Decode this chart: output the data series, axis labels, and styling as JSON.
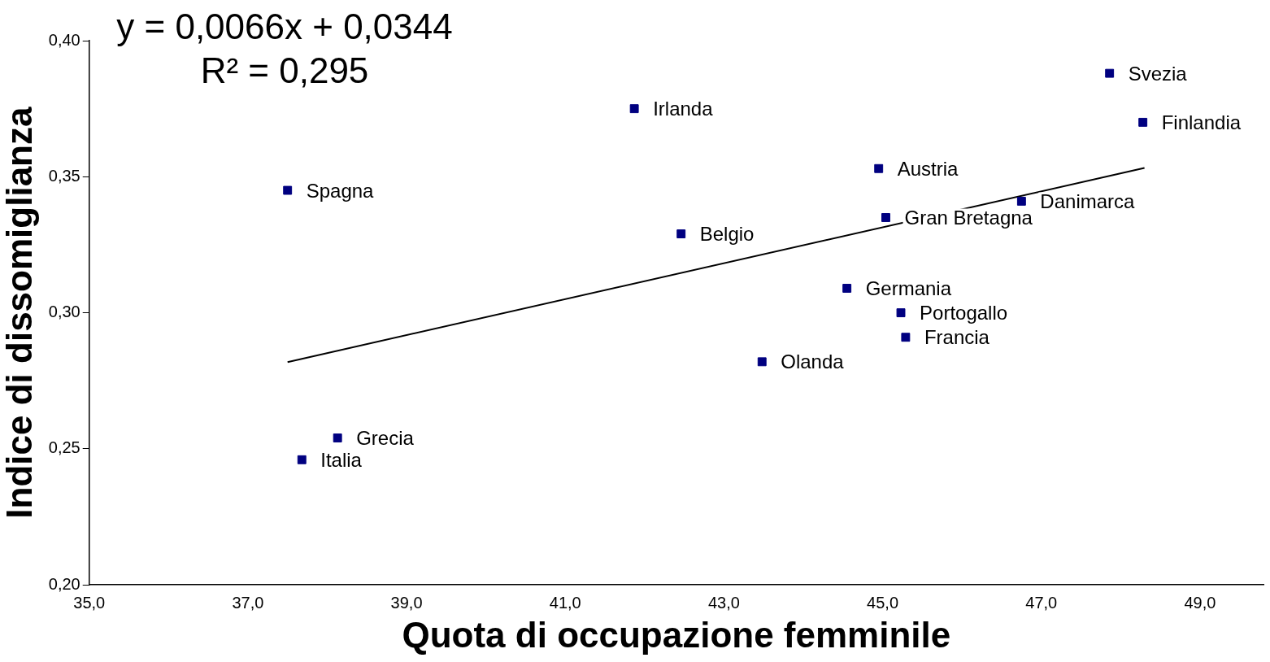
{
  "chart_data": {
    "type": "scatter",
    "xlabel": "Quota di occupazione femminile",
    "ylabel": "Indice di dissomiglianza",
    "xlim": [
      35,
      49.8
    ],
    "xticks": [
      {
        "value": 35,
        "label": "35,0"
      },
      {
        "value": 37,
        "label": "37,0"
      },
      {
        "value": 39,
        "label": "39,0"
      },
      {
        "value": 41,
        "label": "41,0"
      },
      {
        "value": 43,
        "label": "43,0"
      },
      {
        "value": 45,
        "label": "45,0"
      },
      {
        "value": 47,
        "label": "47,0"
      },
      {
        "value": 49,
        "label": "49,0"
      }
    ],
    "ylim": [
      0.2,
      0.4
    ],
    "yticks": [
      {
        "value": 0.2,
        "label": "0,20"
      },
      {
        "value": 0.25,
        "label": "0,25"
      },
      {
        "value": 0.3,
        "label": "0,30"
      },
      {
        "value": 0.35,
        "label": "0,35"
      },
      {
        "value": 0.4,
        "label": "0,40"
      }
    ],
    "grid": false,
    "legend": false,
    "series": [
      {
        "color": "#000080",
        "marker": "square",
        "x": [
          47.86,
          48.28,
          41.87,
          44.95,
          37.5,
          46.75,
          45.04,
          42.46,
          44.55,
          45.23,
          45.29,
          43.48,
          38.13,
          37.68
        ],
        "values": [
          0.388,
          0.37,
          0.375,
          0.353,
          0.345,
          0.341,
          0.335,
          0.329,
          0.309,
          0.3,
          0.291,
          0.282,
          0.254,
          0.246
        ]
      },
      {
        "type": "line",
        "color": "#000000",
        "marker": "none",
        "line_style": "solid",
        "x": [
          37.5,
          48.3
        ],
        "values": [
          0.2819,
          0.3532
        ]
      }
    ],
    "annotations": [
      "y = 0,0066x + 0,0344",
      "R² = 0,295",
      {
        "text": "Svezia",
        "x": 47.86,
        "y": 0.388
      },
      {
        "text": "Finlandia",
        "x": 48.28,
        "y": 0.37
      },
      {
        "text": "Irlanda",
        "x": 41.87,
        "y": 0.375
      },
      {
        "text": "Austria",
        "x": 44.95,
        "y": 0.353
      },
      {
        "text": "Spagna",
        "x": 37.5,
        "y": 0.345
      },
      {
        "text": "Danimarca",
        "x": 46.75,
        "y": 0.341
      },
      {
        "text": "Gran Bretagna",
        "x": 45.04,
        "y": 0.335
      },
      {
        "text": "Belgio",
        "x": 42.46,
        "y": 0.329
      },
      {
        "text": "Germania",
        "x": 44.55,
        "y": 0.309
      },
      {
        "text": "Portogallo",
        "x": 45.23,
        "y": 0.3
      },
      {
        "text": "Francia",
        "x": 45.29,
        "y": 0.291
      },
      {
        "text": "Olanda",
        "x": 43.48,
        "y": 0.282
      },
      {
        "text": "Grecia",
        "x": 38.13,
        "y": 0.254
      },
      {
        "text": "Italia",
        "x": 37.68,
        "y": 0.246
      }
    ]
  }
}
